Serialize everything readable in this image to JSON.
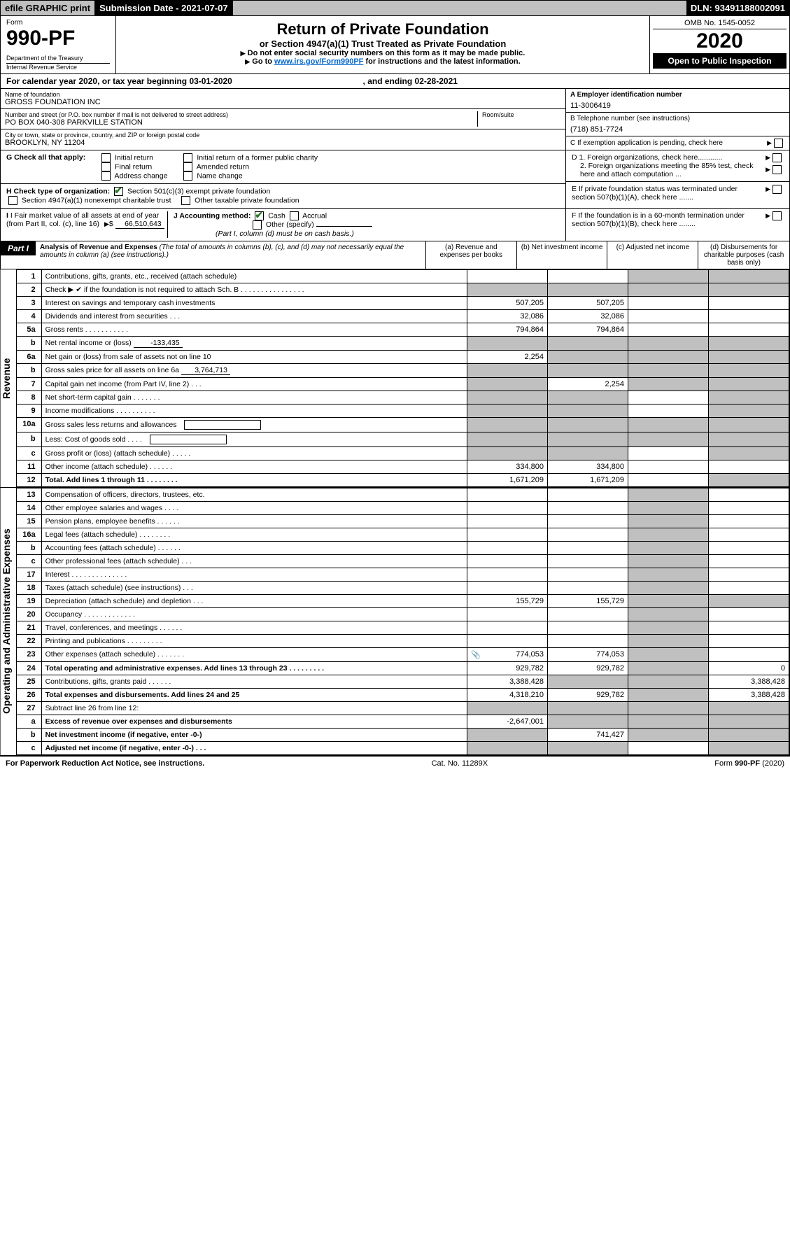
{
  "topbar": {
    "efile": "efile GRAPHIC print",
    "submission_label": "Submission Date - 2021-07-07",
    "dln": "DLN: 93491188002091"
  },
  "header": {
    "form_word": "Form",
    "form_no": "990-PF",
    "dept": "Department of the Treasury",
    "irs": "Internal Revenue Service",
    "title": "Return of Private Foundation",
    "subtitle": "or Section 4947(a)(1) Trust Treated as Private Foundation",
    "instr1": "Do not enter social security numbers on this form as it may be made public.",
    "instr2_pre": "Go to ",
    "instr2_link": "www.irs.gov/Form990PF",
    "instr2_post": " for instructions and the latest information.",
    "omb": "OMB No. 1545-0052",
    "year": "2020",
    "inspection": "Open to Public Inspection"
  },
  "calendar": {
    "pre": "For calendar year 2020, or tax year beginning ",
    "begin": "03-01-2020",
    "mid": ", and ending ",
    "end": "02-28-2021"
  },
  "entity": {
    "name_label": "Name of foundation",
    "name": "GROSS FOUNDATION INC",
    "addr_label": "Number and street (or P.O. box number if mail is not delivered to street address)",
    "addr": "PO BOX 040-308 PARKVILLE STATION",
    "room_label": "Room/suite",
    "city_label": "City or town, state or province, country, and ZIP or foreign postal code",
    "city": "BROOKLYN, NY  11204",
    "a_label": "A Employer identification number",
    "a_val": "11-3006419",
    "b_label": "B Telephone number (see instructions)",
    "b_val": "(718) 851-7724",
    "c_label": "C If exemption application is pending, check here"
  },
  "g": {
    "label": "G Check all that apply:",
    "opts": [
      "Initial return",
      "Initial return of a former public charity",
      "Final return",
      "Amended return",
      "Address change",
      "Name change"
    ]
  },
  "d": {
    "d1": "D 1. Foreign organizations, check here............",
    "d2": "2. Foreign organizations meeting the 85% test, check here and attach computation ..."
  },
  "h": {
    "label": "H Check type of organization:",
    "o1": "Section 501(c)(3) exempt private foundation",
    "o2": "Section 4947(a)(1) nonexempt charitable trust",
    "o3": "Other taxable private foundation"
  },
  "e": {
    "label": "E  If private foundation status was terminated under section 507(b)(1)(A), check here ......."
  },
  "i": {
    "label": "I Fair market value of all assets at end of year (from Part II, col. (c), line 16)",
    "val": "66,510,643"
  },
  "j": {
    "label": "J Accounting method:",
    "o1": "Cash",
    "o2": "Accrual",
    "o3": "Other (specify)",
    "note": "(Part I, column (d) must be on cash basis.)"
  },
  "f": {
    "label": "F  If the foundation is in a 60-month termination under section 507(b)(1)(B), check here ........"
  },
  "part1": {
    "label": "Part I",
    "title": "Analysis of Revenue and Expenses",
    "note": "(The total of amounts in columns (b), (c), and (d) may not necessarily equal the amounts in column (a) (see instructions).)",
    "cols": {
      "a": "(a)   Revenue and expenses per books",
      "b": "(b)   Net investment income",
      "c": "(c)   Adjusted net income",
      "d": "(d)   Disbursements for charitable purposes (cash basis only)"
    }
  },
  "side_labels": {
    "revenue": "Revenue",
    "opex": "Operating and Administrative Expenses"
  },
  "rows": [
    {
      "n": "1",
      "d": "Contributions, gifts, grants, etc., received (attach schedule)",
      "a": "",
      "b": "",
      "cs": true,
      "ds": true
    },
    {
      "n": "2",
      "d": "Check ▶ ✔ if the foundation is not required to attach Sch. B  .  .  .  .  .  .  .  .  .  .  .  .  .  .  .  .",
      "as": true,
      "bs": true,
      "cs": true,
      "ds": true
    },
    {
      "n": "3",
      "d": "Interest on savings and temporary cash investments",
      "a": "507,205",
      "b": "507,205"
    },
    {
      "n": "4",
      "d": "Dividends and interest from securities   .  .  .",
      "a": "32,086",
      "b": "32,086"
    },
    {
      "n": "5a",
      "d": "Gross rents     .  .  .  .  .  .  .  .  .  .  .",
      "a": "794,864",
      "b": "794,864"
    },
    {
      "n": "b",
      "d": "Net rental income or (loss)",
      "inline": "-133,435",
      "as": true,
      "bs": true,
      "cs": true,
      "ds": true
    },
    {
      "n": "6a",
      "d": "Net gain or (loss) from sale of assets not on line 10",
      "a": "2,254",
      "bs": true,
      "cs": true,
      "ds": true
    },
    {
      "n": "b",
      "d": "Gross sales price for all assets on line 6a",
      "inline": "3,764,713",
      "as": true,
      "bs": true,
      "cs": true,
      "ds": true
    },
    {
      "n": "7",
      "d": "Capital gain net income (from Part IV, line 2)   .  .  .",
      "as": true,
      "b": "2,254",
      "cs": true,
      "ds": true
    },
    {
      "n": "8",
      "d": "Net short-term capital gain   .  .  .  .  .  .  .",
      "as": true,
      "bs": true,
      "ds": true
    },
    {
      "n": "9",
      "d": "Income modifications  .  .  .  .  .  .  .  .  .  .",
      "as": true,
      "bs": true,
      "ds": true
    },
    {
      "n": "10a",
      "d": "Gross sales less returns and allowances",
      "box": true,
      "as": true,
      "bs": true,
      "cs": true,
      "ds": true
    },
    {
      "n": "b",
      "d": "Less: Cost of goods sold    .  .  .  .",
      "box": true,
      "as": true,
      "bs": true,
      "cs": true,
      "ds": true
    },
    {
      "n": "c",
      "d": "Gross profit or (loss) (attach schedule)   .  .  .  .  .",
      "as": true,
      "bs": true,
      "ds": true
    },
    {
      "n": "11",
      "d": "Other income (attach schedule)   .  .  .  .  .  .",
      "a": "334,800",
      "b": "334,800"
    },
    {
      "n": "12",
      "d": "Total. Add lines 1 through 11   .  .  .  .  .  .  .  .",
      "a": "1,671,209",
      "b": "1,671,209",
      "bold": true,
      "ds": true
    },
    {
      "n": "13",
      "d": "Compensation of officers, directors, trustees, etc.",
      "cs": true
    },
    {
      "n": "14",
      "d": "Other employee salaries and wages    .  .  .  .",
      "cs": true
    },
    {
      "n": "15",
      "d": "Pension plans, employee benefits   .  .  .  .  .  .",
      "cs": true
    },
    {
      "n": "16a",
      "d": "Legal fees (attach schedule)  .  .  .  .  .  .  .  .",
      "cs": true
    },
    {
      "n": "b",
      "d": "Accounting fees (attach schedule)   .  .  .  .  .  .",
      "cs": true
    },
    {
      "n": "c",
      "d": "Other professional fees (attach schedule)    .  .  .",
      "cs": true
    },
    {
      "n": "17",
      "d": "Interest  .  .  .  .  .  .  .  .  .  .  .  .  .  .",
      "cs": true
    },
    {
      "n": "18",
      "d": "Taxes (attach schedule) (see instructions)    .  .  .",
      "cs": true
    },
    {
      "n": "19",
      "d": "Depreciation (attach schedule) and depletion   .  .  .",
      "a": "155,729",
      "b": "155,729",
      "cs": true,
      "ds": true
    },
    {
      "n": "20",
      "d": "Occupancy  .  .  .  .  .  .  .  .  .  .  .  .  .",
      "cs": true
    },
    {
      "n": "21",
      "d": "Travel, conferences, and meetings   .  .  .  .  .  .",
      "cs": true
    },
    {
      "n": "22",
      "d": "Printing and publications  .  .  .  .  .  .  .  .  .",
      "cs": true
    },
    {
      "n": "23",
      "d": "Other expenses (attach schedule)   .  .  .  .  .  .  .",
      "a": "774,053",
      "b": "774,053",
      "icon": true,
      "cs": true
    },
    {
      "n": "24",
      "d": "Total operating and administrative expenses. Add lines 13 through 23   .  .  .  .  .  .  .  .  .",
      "a": "929,782",
      "b": "929,782",
      "dv": "0",
      "bold": true,
      "cs": true
    },
    {
      "n": "25",
      "d": "Contributions, gifts, grants paid    .  .  .  .  .  .",
      "a": "3,388,428",
      "bs": true,
      "cs": true,
      "dv": "3,388,428"
    },
    {
      "n": "26",
      "d": "Total expenses and disbursements. Add lines 24 and 25",
      "a": "4,318,210",
      "b": "929,782",
      "dv": "3,388,428",
      "bold": true,
      "cs": true
    },
    {
      "n": "27",
      "d": "Subtract line 26 from line 12:",
      "as": true,
      "bs": true,
      "cs": true,
      "ds": true
    },
    {
      "n": "a",
      "d": "Excess of revenue over expenses and disbursements",
      "a": "-2,647,001",
      "bs": true,
      "cs": true,
      "ds": true,
      "bold": true
    },
    {
      "n": "b",
      "d": "Net investment income (if negative, enter -0-)",
      "as": true,
      "b": "741,427",
      "cs": true,
      "ds": true,
      "bold": true
    },
    {
      "n": "c",
      "d": "Adjusted net income (if negative, enter -0-)   .  .  .",
      "as": true,
      "bs": true,
      "ds": true,
      "bold": true
    }
  ],
  "footer": {
    "left": "For Paperwork Reduction Act Notice, see instructions.",
    "mid": "Cat. No. 11289X",
    "right": "Form 990-PF (2020)"
  }
}
